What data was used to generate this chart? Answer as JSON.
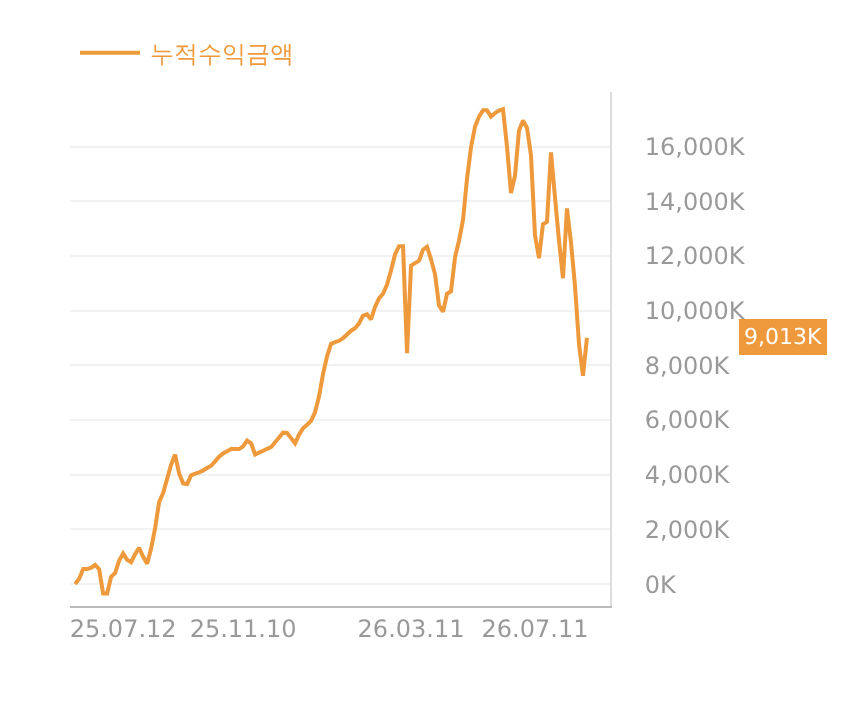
{
  "chart_data": {
    "type": "line",
    "legend": "top left",
    "grid": "y",
    "marker": "none",
    "line_style": "solid",
    "categories": [
      null,
      null,
      null,
      null,
      null,
      null,
      null,
      null,
      null,
      null,
      null,
      null,
      "25.07.12",
      null,
      null,
      null,
      null,
      null,
      null,
      null,
      null,
      null,
      null,
      null,
      null,
      null,
      null,
      null,
      null,
      null,
      null,
      null,
      null,
      null,
      null,
      null,
      null,
      null,
      null,
      null,
      null,
      null,
      "25.11.10",
      null,
      null,
      null,
      null,
      null,
      null,
      null,
      null,
      null,
      null,
      null,
      null,
      null,
      null,
      null,
      null,
      null,
      null,
      null,
      null,
      null,
      null,
      null,
      null,
      null,
      null,
      null,
      null,
      null,
      null,
      null,
      null,
      null,
      null,
      null,
      null,
      null,
      null,
      null,
      null,
      null,
      "26.03.11",
      null,
      null,
      null,
      null,
      null,
      null,
      null,
      null,
      null,
      null,
      null,
      null,
      null,
      null,
      null,
      null,
      null,
      null,
      null,
      null,
      null,
      null,
      null,
      null,
      null,
      null,
      null,
      null,
      null,
      null,
      "26.07.11",
      null,
      null,
      null,
      null,
      null,
      null,
      null,
      null,
      null,
      null,
      null,
      null,
      null
    ],
    "series": [
      {
        "name": "누적수익금액",
        "color": "#ee9a3c",
        "values": [
          0,
          200,
          550,
          550,
          600,
          700,
          550,
          -340,
          -340,
          270,
          410,
          860,
          1120,
          890,
          800,
          1100,
          1330,
          1000,
          750,
          1300,
          2050,
          3000,
          3330,
          3850,
          4370,
          4740,
          4050,
          3680,
          3660,
          3980,
          4040,
          4090,
          4160,
          4250,
          4330,
          4490,
          4660,
          4780,
          4860,
          4940,
          4940,
          4940,
          5040,
          5250,
          5150,
          4740,
          4810,
          4880,
          4950,
          5010,
          5190,
          5360,
          5540,
          5530,
          5340,
          5150,
          5470,
          5700,
          5830,
          5970,
          6290,
          6870,
          7690,
          8330,
          8790,
          8850,
          8900,
          9000,
          9130,
          9270,
          9360,
          9540,
          9820,
          9870,
          9680,
          10140,
          10450,
          10620,
          10960,
          11470,
          12060,
          12360,
          12360,
          8450,
          11650,
          11740,
          11830,
          12230,
          12340,
          11880,
          11330,
          10200,
          9960,
          10620,
          10710,
          11950,
          12570,
          13320,
          14830,
          15980,
          16730,
          17100,
          17330,
          17330,
          17100,
          17230,
          17320,
          17370,
          16000,
          14300,
          14940,
          16590,
          16960,
          16690,
          15690,
          12770,
          11920,
          13160,
          13250,
          15790,
          14150,
          12570,
          11190,
          13740,
          12500,
          10920,
          8790,
          7620,
          9013
        ]
      }
    ],
    "ylim": [
      -800,
      18000
    ],
    "yticks": [
      {
        "value": 0,
        "label": "0K"
      },
      {
        "value": 2000,
        "label": "2,000K"
      },
      {
        "value": 4000,
        "label": "4,000K"
      },
      {
        "value": 6000,
        "label": "6,000K"
      },
      {
        "value": 8000,
        "label": "8,000K"
      },
      {
        "value": 10000,
        "label": "10,000K"
      },
      {
        "value": 12000,
        "label": "12,000K"
      },
      {
        "value": 14000,
        "label": "14,000K"
      },
      {
        "value": 16000,
        "label": "16,000K"
      }
    ],
    "annotations": [
      "9,013K"
    ]
  }
}
